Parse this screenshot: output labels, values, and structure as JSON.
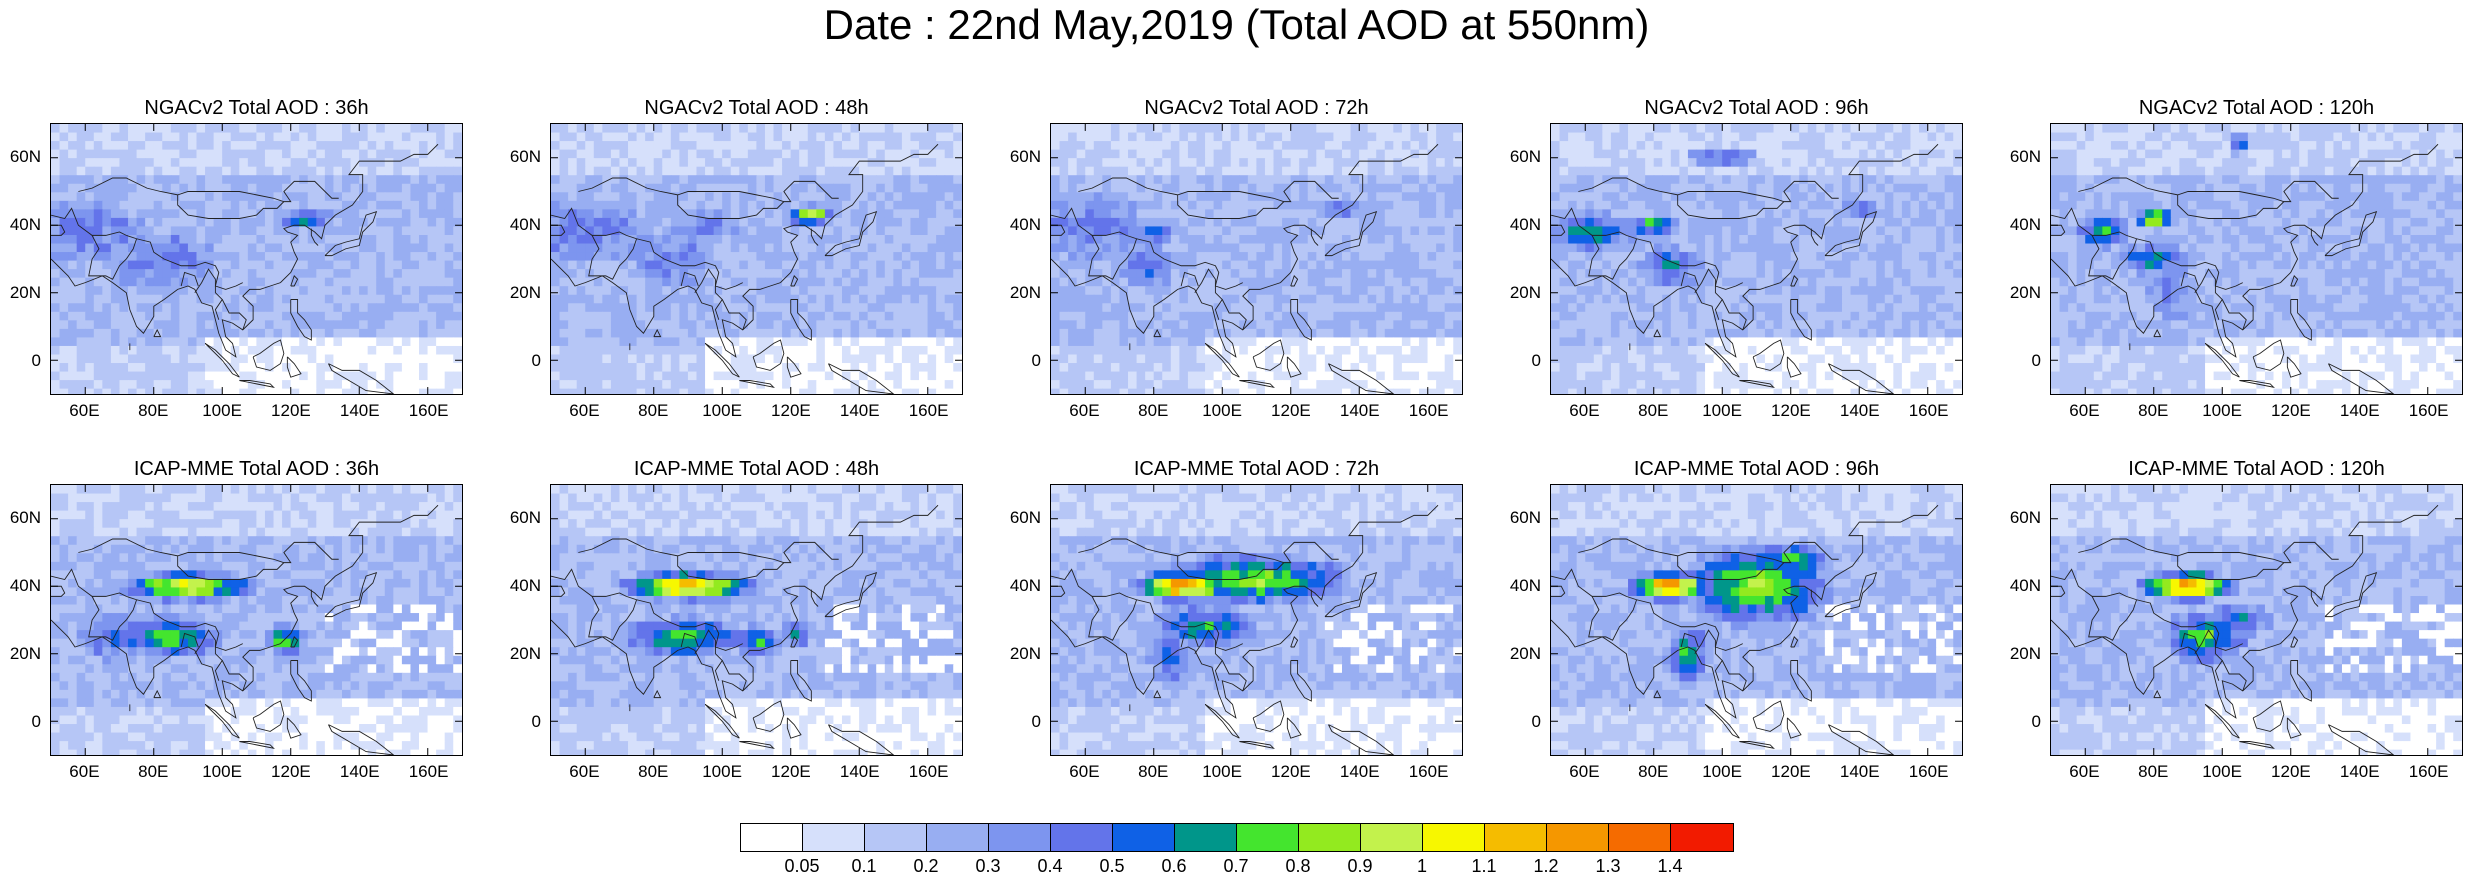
{
  "title": "Date : 22nd May,2019 (Total AOD at 550nm)",
  "x_ticks": [
    "60E",
    "80E",
    "100E",
    "120E",
    "140E",
    "160E"
  ],
  "y_ticks": [
    "60N",
    "40N",
    "20N",
    "0"
  ],
  "rows": [
    {
      "model": "NGACv2",
      "panels": [
        {
          "title": "NGACv2 Total AOD : 36h"
        },
        {
          "title": "NGACv2 Total AOD : 48h"
        },
        {
          "title": "NGACv2 Total AOD : 72h"
        },
        {
          "title": "NGACv2 Total AOD : 96h"
        },
        {
          "title": "NGACv2 Total AOD : 120h"
        }
      ]
    },
    {
      "model": "ICAP-MME",
      "panels": [
        {
          "title": "ICAP-MME Total AOD : 36h"
        },
        {
          "title": "ICAP-MME Total AOD : 48h"
        },
        {
          "title": "ICAP-MME Total AOD : 72h"
        },
        {
          "title": "ICAP-MME Total AOD : 96h"
        },
        {
          "title": "ICAP-MME Total AOD : 120h"
        }
      ]
    }
  ],
  "colorbar": {
    "labels": [
      "0.05",
      "0.1",
      "0.2",
      "0.3",
      "0.4",
      "0.5",
      "0.6",
      "0.7",
      "0.8",
      "0.9",
      "1",
      "1.1",
      "1.2",
      "1.3",
      "1.4"
    ],
    "colors": [
      "#ffffff",
      "#d6e0fb",
      "#b6c6f6",
      "#98aef2",
      "#7d95ef",
      "#6374ea",
      "#0f61e6",
      "#00968a",
      "#44e52e",
      "#93ea1f",
      "#c3f24c",
      "#f7f700",
      "#f5bc00",
      "#f59700",
      "#f56b00",
      "#f21b00"
    ]
  },
  "map_data": {
    "extent": {
      "lon": [
        50,
        170
      ],
      "lat": [
        -10,
        70
      ]
    },
    "palette": {
      "bg_level": 2,
      "low_level": 1,
      "land_level": 3,
      "mid_level": 4,
      "high_level": 5
    }
  }
}
